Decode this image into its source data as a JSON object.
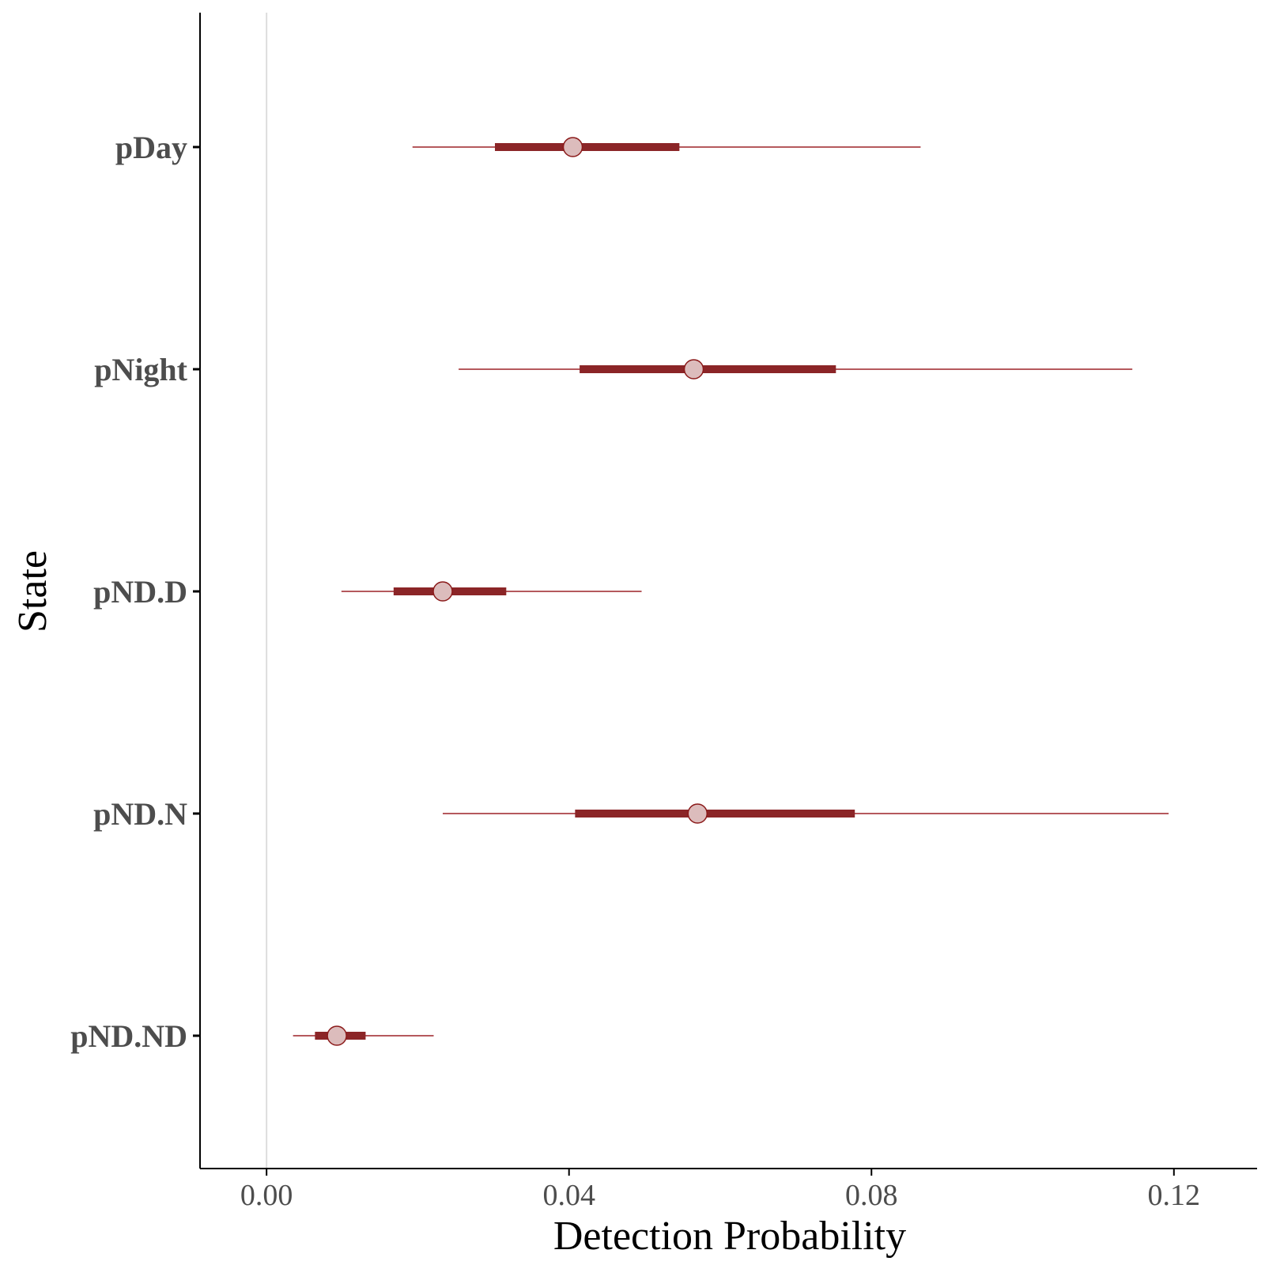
{
  "chart_data": {
    "type": "interval",
    "title": "",
    "xlabel": "Detection Probability",
    "ylabel": "State",
    "xlim": [
      -0.0088,
      0.131
    ],
    "x_ticks": [
      0.0,
      0.04,
      0.08,
      0.12
    ],
    "x_tick_labels": [
      "0.00",
      "0.04",
      "0.08",
      "0.12"
    ],
    "reference_line_x": 0,
    "grid": false,
    "categories": [
      "pDay",
      "pNight",
      "pND.D",
      "pND.N",
      "pND.ND"
    ],
    "estimates": [
      {
        "state": "pDay",
        "median": 0.0405,
        "inner": [
          0.0302,
          0.0546
        ],
        "outer": [
          0.0193,
          0.0865
        ]
      },
      {
        "state": "pNight",
        "median": 0.0565,
        "inner": [
          0.0414,
          0.0753
        ],
        "outer": [
          0.0254,
          0.1145
        ]
      },
      {
        "state": "pND.D",
        "median": 0.0233,
        "inner": [
          0.0168,
          0.0317
        ],
        "outer": [
          0.0099,
          0.0496
        ]
      },
      {
        "state": "pND.N",
        "median": 0.057,
        "inner": [
          0.0408,
          0.0778
        ],
        "outer": [
          0.0233,
          0.1193
        ]
      },
      {
        "state": "pND.ND",
        "median": 0.0093,
        "inner": [
          0.0064,
          0.0131
        ],
        "outer": [
          0.0035,
          0.0221
        ]
      }
    ],
    "colors": {
      "outer_line": "#b5595d",
      "inner_line": "#8b2527",
      "point_fill": "#dcbcbc",
      "point_stroke": "#8b1a1a",
      "reference_line": "#dddddd",
      "axis": "#000000"
    }
  }
}
